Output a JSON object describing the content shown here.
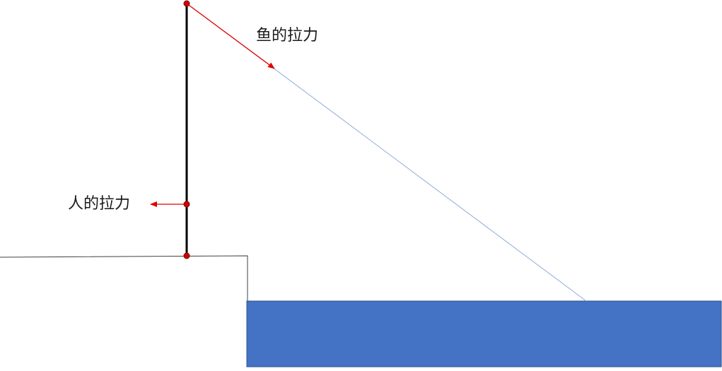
{
  "labels": {
    "fish_pull": "鱼的拉力",
    "person_pull": "人的拉力"
  },
  "colors": {
    "rod": "#000000",
    "force_arrow": "#e00000",
    "joint_point": "#d40000",
    "fishing_line": "#8faadc",
    "water": "#4472c4",
    "water_edge": "#2f528f",
    "bank": "#404040"
  }
}
